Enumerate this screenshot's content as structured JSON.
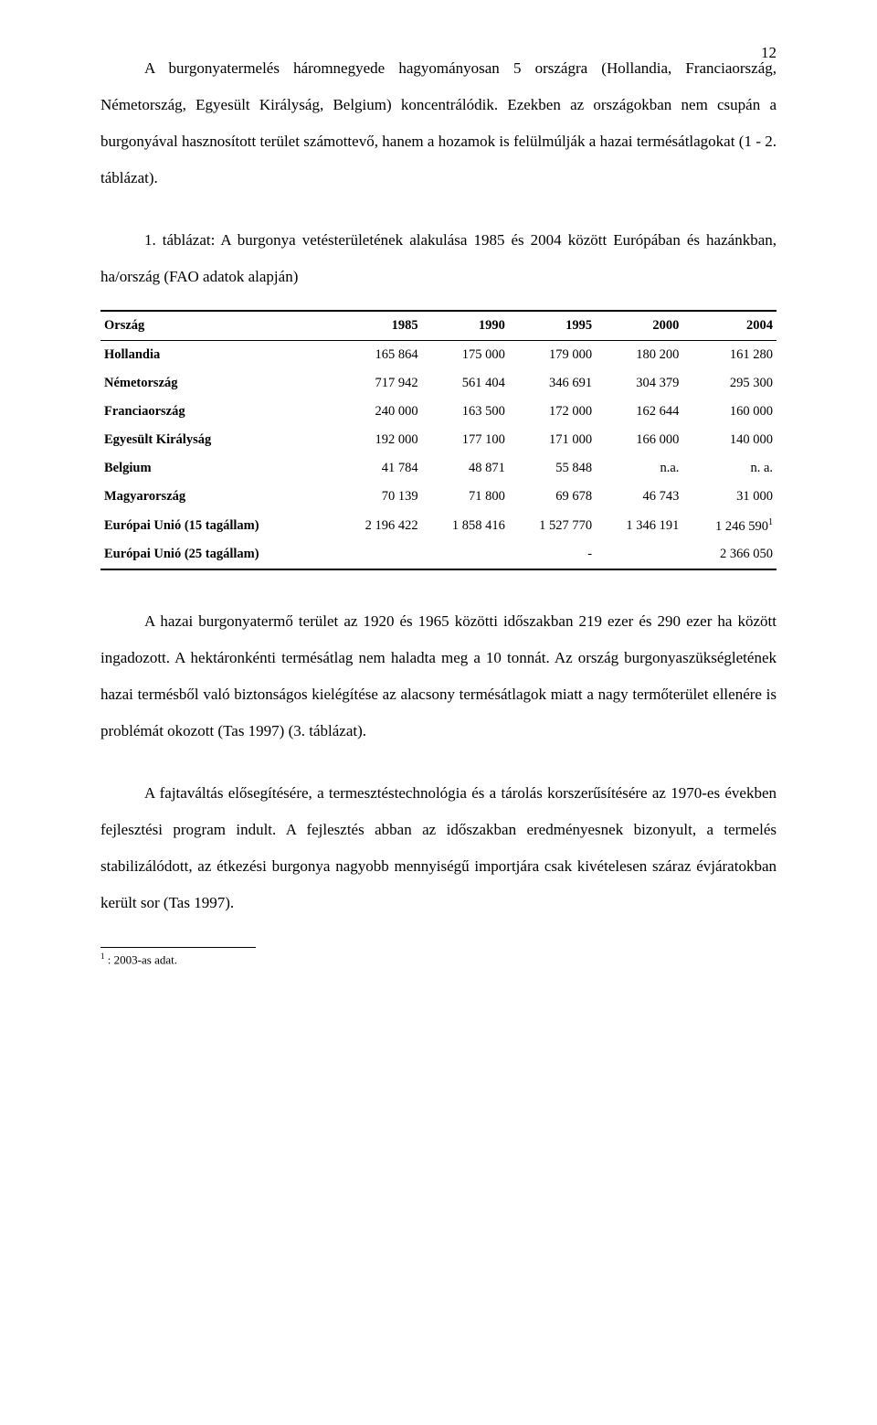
{
  "page_number": "12",
  "para1": "A burgonyatermelés háromnegyede hagyományosan 5 országra (Hollandia, Franciaország, Németország, Egyesült Királyság, Belgium) koncentrálódik. Ezekben az országokban nem csupán a burgonyával hasznosított terület számottevő, hanem a hozamok is felülmúlják a hazai termésátlagokat (1 - 2. táblázat).",
  "table_caption": "1. táblázat: A burgonya vetésterületének alakulása 1985 és 2004 között Európában és hazánkban, ha/ország (FAO adatok alapján)",
  "table": {
    "headers": [
      "Ország",
      "1985",
      "1990",
      "1995",
      "2000",
      "2004"
    ],
    "rows": [
      [
        "Hollandia",
        "165 864",
        "175 000",
        "179 000",
        "180 200",
        "161 280"
      ],
      [
        "Németország",
        "717 942",
        "561 404",
        "346 691",
        "304 379",
        "295 300"
      ],
      [
        "Franciaország",
        "240 000",
        "163 500",
        "172 000",
        "162 644",
        "160 000"
      ],
      [
        "Egyesült Királyság",
        "192 000",
        "177 100",
        "171 000",
        "166 000",
        "140 000"
      ],
      [
        "Belgium",
        "41 784",
        "48 871",
        "55 848",
        "n.a.",
        "n. a."
      ],
      [
        "Magyarország",
        "70 139",
        "71 800",
        "69 678",
        "46 743",
        "31 000"
      ],
      [
        "Európai Unió (15 tagállam)",
        "2 196 422",
        "1 858 416",
        "1 527 770",
        "1 346 191",
        "1 246 590"
      ],
      [
        "Európai Unió (25 tagállam)",
        "",
        "",
        "-",
        "",
        "2 366 050"
      ]
    ],
    "superscript_row_index": 6,
    "superscript_col_index": 5,
    "superscript": "1"
  },
  "para2": "A hazai burgonyatermő terület az 1920 és 1965 közötti időszakban 219 ezer és 290 ezer ha között ingadozott. A hektáronkénti termésátlag nem haladta meg a 10 tonnát. Az ország burgonyaszükségletének hazai termésből való biztonságos kielégítése az alacsony termésátlagok miatt a nagy termőterület ellenére is problémát okozott (Tas 1997) (3. táblázat).",
  "para3": "A fajtaváltás elősegítésére, a termesztéstechnológia és a tárolás korszerűsítésére az 1970-es években fejlesztési program indult. A fejlesztés abban az időszakban eredményesnek bizonyult, a termelés stabilizálódott, az étkezési burgonya nagyobb mennyiségű importjára csak kivételesen száraz évjáratokban került sor (Tas 1997).",
  "footnote_marker": "1",
  "footnote_text": " : 2003-as adat."
}
